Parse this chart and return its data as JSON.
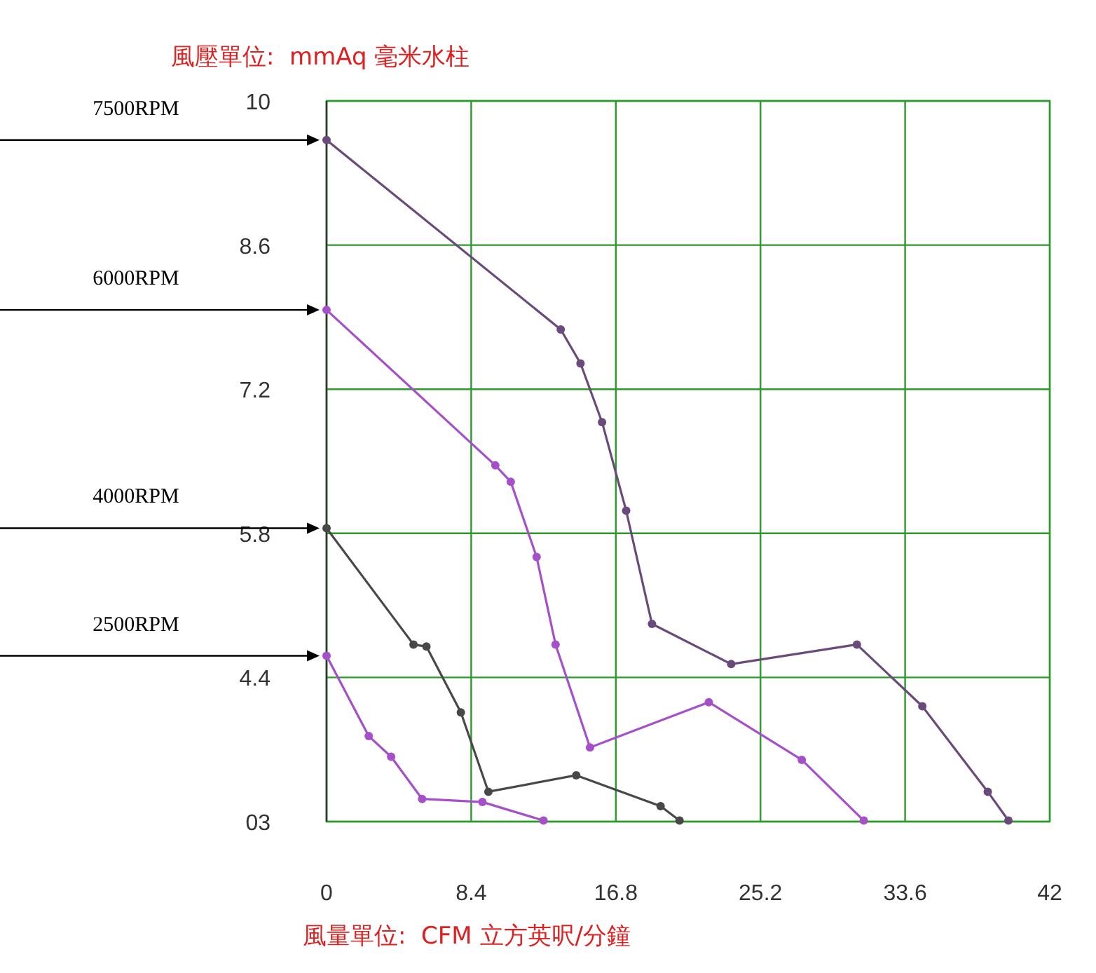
{
  "chart_data": {
    "type": "line",
    "xlabel": "風量單位:  CFM 立方英呎/分鐘",
    "ylabel": "風壓單位:  mmAq 毫米水柱",
    "xlim": [
      0,
      42
    ],
    "ylim": [
      3,
      10
    ],
    "xticks": [
      0,
      8.4,
      16.8,
      25.2,
      33.6,
      42
    ],
    "yticks": [
      {
        "value": 3,
        "label": "03"
      },
      4.4,
      5.8,
      7.2,
      8.6,
      10
    ],
    "grid": true,
    "marker": "circle",
    "line_style": "solid",
    "annotations": [
      "7500RPM",
      "6000RPM",
      "4000RPM",
      "2500RPM"
    ],
    "series": [
      {
        "color": "#6a4a7a",
        "x": [
          0,
          13.6,
          14.75,
          16.0,
          17.4,
          18.9,
          23.5,
          30.8,
          34.6,
          38.4,
          39.6
        ],
        "values": [
          9.62,
          7.78,
          7.45,
          6.88,
          6.02,
          4.92,
          4.53,
          4.72,
          4.12,
          3.29,
          3.01
        ]
      },
      {
        "color": "#a550c8",
        "x": [
          0,
          9.8,
          10.7,
          12.2,
          13.3,
          15.3,
          22.2,
          27.6,
          31.2
        ],
        "values": [
          7.97,
          6.46,
          6.3,
          5.57,
          4.72,
          3.72,
          4.16,
          3.6,
          3.01
        ]
      },
      {
        "color": "#484848",
        "x": [
          0,
          5.05,
          5.8,
          7.8,
          9.4,
          14.5,
          19.4,
          20.5
        ],
        "values": [
          5.85,
          4.72,
          4.7,
          4.06,
          3.29,
          3.45,
          3.15,
          3.01
        ]
      },
      {
        "color": "#a550c8",
        "x": [
          0,
          2.45,
          3.75,
          5.55,
          9.05,
          12.6
        ],
        "values": [
          4.61,
          3.83,
          3.63,
          3.22,
          3.19,
          3.01
        ]
      }
    ]
  }
}
